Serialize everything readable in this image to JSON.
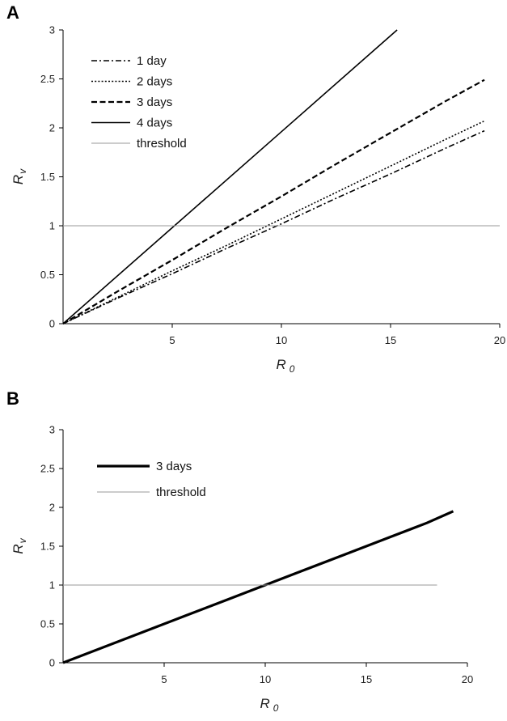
{
  "panels": {
    "a": {
      "letter": "A"
    },
    "b": {
      "letter": "B"
    }
  },
  "chart_data": [
    {
      "type": "line",
      "panel": "A",
      "xlabel": "R 0",
      "ylabel": "Rv",
      "xlim": [
        0,
        20
      ],
      "ylim": [
        0,
        3
      ],
      "xticks": [
        5,
        10,
        15,
        20
      ],
      "yticks": [
        0,
        0.5,
        1,
        1.5,
        2,
        2.5,
        3
      ],
      "legend_position": "top-left",
      "series": [
        {
          "name": "1 day",
          "style": "dash-dot",
          "color": "#000000",
          "x": [
            0,
            2.5,
            5,
            7.5,
            10,
            12.5,
            15,
            17.5,
            19.3
          ],
          "y": [
            0,
            0.26,
            0.51,
            0.77,
            1.02,
            1.28,
            1.53,
            1.79,
            1.97
          ]
        },
        {
          "name": "2 days",
          "style": "dotted",
          "color": "#000000",
          "x": [
            0,
            2.5,
            5,
            7.5,
            10,
            12.5,
            15,
            17.5,
            19.3
          ],
          "y": [
            0,
            0.27,
            0.54,
            0.8,
            1.07,
            1.34,
            1.61,
            1.88,
            2.07
          ]
        },
        {
          "name": "3 days",
          "style": "dashed",
          "color": "#000000",
          "x": [
            0,
            2.5,
            5,
            7.5,
            10,
            12.5,
            15,
            17.5,
            19.3
          ],
          "y": [
            0,
            0.33,
            0.65,
            0.98,
            1.3,
            1.63,
            1.95,
            2.27,
            2.49
          ]
        },
        {
          "name": "4 days",
          "style": "solid",
          "color": "#000000",
          "x": [
            0,
            5,
            10,
            15.3
          ],
          "y": [
            0,
            0.98,
            1.96,
            3.0
          ]
        },
        {
          "name": "threshold",
          "style": "thin",
          "color": "#999999",
          "x": [
            0,
            20
          ],
          "y": [
            1,
            1
          ]
        }
      ]
    },
    {
      "type": "line",
      "panel": "B",
      "xlabel": "R 0",
      "ylabel": "Rv",
      "xlim": [
        0,
        20
      ],
      "ylim": [
        0,
        3
      ],
      "xticks": [
        5,
        10,
        15,
        20
      ],
      "yticks": [
        0,
        0.5,
        1,
        1.5,
        2,
        2.5,
        3
      ],
      "legend_position": "top-left",
      "series": [
        {
          "name": "3 days",
          "style": "thick",
          "color": "#000000",
          "x": [
            0,
            4,
            6,
            8,
            10,
            12,
            14,
            16,
            18,
            19.3
          ],
          "y": [
            0,
            0.4,
            0.6,
            0.8,
            1.0,
            1.2,
            1.4,
            1.6,
            1.8,
            1.95
          ]
        },
        {
          "name": "threshold",
          "style": "thin",
          "color": "#999999",
          "x": [
            0,
            18.5
          ],
          "y": [
            1,
            1
          ]
        }
      ]
    }
  ]
}
